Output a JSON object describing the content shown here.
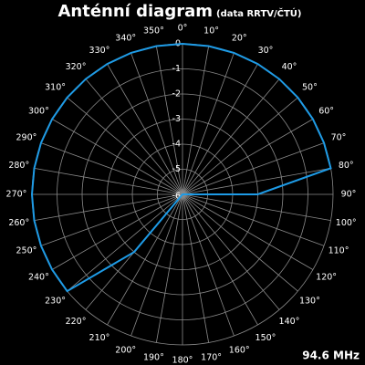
{
  "chart_data": {
    "type": "polar",
    "title": "Anténní diagram",
    "subtitle": "(data RRTV/ČTÚ)",
    "annotation": "94.6 MHz",
    "theta": [
      0,
      10,
      20,
      30,
      40,
      50,
      60,
      70,
      80,
      90,
      100,
      110,
      120,
      130,
      140,
      150,
      160,
      170,
      180,
      190,
      200,
      210,
      220,
      230,
      240,
      250,
      260,
      270,
      280,
      290,
      300,
      310,
      320,
      330,
      340,
      350
    ],
    "values": [
      0,
      0,
      0,
      0,
      0,
      0,
      0,
      0,
      0,
      -3,
      -6,
      -6,
      -6,
      -6,
      -6,
      -6,
      -6,
      -6,
      -6,
      -6,
      -6,
      -6,
      -3,
      0,
      0,
      0,
      0,
      0,
      0,
      0,
      0,
      0,
      0,
      0,
      0,
      0
    ],
    "color": "#1e9be6",
    "rlim": [
      -6,
      0
    ],
    "rticks": [
      0,
      -1,
      -2,
      -3,
      -4,
      -5,
      -6
    ],
    "thetaticks": [
      {
        "value": 0,
        "label": "0°"
      },
      {
        "value": 10,
        "label": "10°"
      },
      {
        "value": 20,
        "label": "20°"
      },
      {
        "value": 30,
        "label": "30°"
      },
      {
        "value": 40,
        "label": "40°"
      },
      {
        "value": 50,
        "label": "50°"
      },
      {
        "value": 60,
        "label": "60°"
      },
      {
        "value": 70,
        "label": "70°"
      },
      {
        "value": 80,
        "label": "80°"
      },
      {
        "value": 90,
        "label": "90°"
      },
      {
        "value": 100,
        "label": "100°"
      },
      {
        "value": 110,
        "label": "110°"
      },
      {
        "value": 120,
        "label": "120°"
      },
      {
        "value": 130,
        "label": "130°"
      },
      {
        "value": 140,
        "label": "140°"
      },
      {
        "value": 150,
        "label": "150°"
      },
      {
        "value": 160,
        "label": "160°"
      },
      {
        "value": 170,
        "label": "170°"
      },
      {
        "value": 180,
        "label": "180°"
      },
      {
        "value": 190,
        "label": "190°"
      },
      {
        "value": 200,
        "label": "200°"
      },
      {
        "value": 210,
        "label": "210°"
      },
      {
        "value": 220,
        "label": "220°"
      },
      {
        "value": 230,
        "label": "230°"
      },
      {
        "value": 240,
        "label": "240°"
      },
      {
        "value": 250,
        "label": "250°"
      },
      {
        "value": 260,
        "label": "260°"
      },
      {
        "value": 270,
        "label": "270°"
      },
      {
        "value": 280,
        "label": "280°"
      },
      {
        "value": 290,
        "label": "290°"
      },
      {
        "value": 300,
        "label": "300°"
      },
      {
        "value": 310,
        "label": "310°"
      },
      {
        "value": 320,
        "label": "320°"
      },
      {
        "value": 330,
        "label": "330°"
      },
      {
        "value": 340,
        "label": "340°"
      },
      {
        "value": 350,
        "label": "350°"
      }
    ],
    "grid": true
  }
}
